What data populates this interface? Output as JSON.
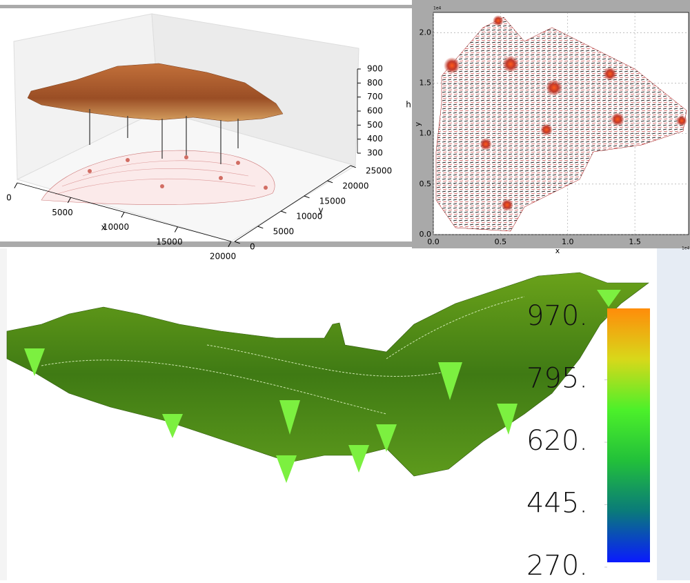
{
  "chart_data": [
    {
      "type": "surface3d",
      "xlabel": "x",
      "ylabel": "y",
      "zlabel": "h",
      "xlim": [
        0,
        20000
      ],
      "xticks": [
        0,
        5000,
        10000,
        15000,
        20000
      ],
      "ylim": [
        0,
        25000
      ],
      "yticks": [
        0,
        5000,
        10000,
        15000,
        20000,
        25000
      ],
      "zlim": [
        300,
        900
      ],
      "zticks": [
        300,
        400,
        500,
        600,
        700,
        800,
        900
      ],
      "color": "#b5652f"
    },
    {
      "type": "quiver",
      "xlabel": "x",
      "ylabel": "y",
      "x_offset_label": "1e4",
      "y_offset_label": "1e4",
      "xlim": [
        0,
        1.9
      ],
      "xticks": [
        {
          "value": 0,
          "label": "0.0"
        },
        0.5,
        {
          "value": 1,
          "label": "1.0"
        },
        1.5
      ],
      "ylim": [
        0,
        2.2
      ],
      "yticks": [
        {
          "value": 0,
          "label": "0.0"
        },
        0.5,
        {
          "value": 1,
          "label": "1.0"
        },
        1.5,
        {
          "value": 2,
          "label": "2.0"
        }
      ],
      "grid": true,
      "color": "#c0392b"
    },
    {
      "type": "surface3d_render",
      "clim": [
        270,
        970
      ],
      "colorbar_ticks": [
        {
          "value": 970,
          "label": "970."
        },
        {
          "value": 795,
          "label": "795."
        },
        {
          "value": 620,
          "label": "620."
        },
        {
          "value": 445,
          "label": "445."
        },
        {
          "value": 270,
          "label": "270."
        }
      ],
      "colormap": [
        "#0a1aff",
        "#0a7a7a",
        "#22c03a",
        "#4cf02a",
        "#d8d81a",
        "#ff8c0a"
      ]
    }
  ]
}
